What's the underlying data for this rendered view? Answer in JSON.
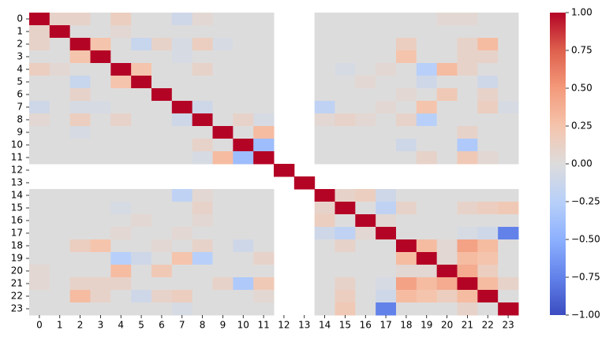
{
  "chart_data": {
    "type": "heatmap",
    "categories": [
      "0",
      "1",
      "2",
      "3",
      "4",
      "5",
      "6",
      "7",
      "8",
      "9",
      "10",
      "11",
      "12",
      "13",
      "14",
      "15",
      "16",
      "17",
      "18",
      "19",
      "20",
      "21",
      "22",
      "23"
    ],
    "values": [
      [
        1,
        0.1,
        0.1,
        0,
        0.15,
        0,
        0,
        -0.1,
        0.05,
        0,
        0,
        0,
        null,
        null,
        0,
        0,
        0,
        0,
        0,
        0,
        0.05,
        0.05,
        0,
        0
      ],
      [
        0.1,
        1,
        0,
        0,
        0.05,
        0,
        0,
        0,
        0,
        0,
        0,
        0,
        null,
        null,
        0,
        0,
        0,
        0,
        0,
        0,
        0,
        0,
        0,
        0
      ],
      [
        0.1,
        0,
        1,
        0.25,
        0,
        -0.15,
        0.1,
        -0.05,
        0.15,
        -0.05,
        0,
        0,
        null,
        null,
        0,
        0,
        0,
        0,
        0.15,
        0,
        0,
        0.1,
        0.3,
        0
      ],
      [
        0,
        0,
        0.25,
        1,
        0,
        0,
        0,
        -0.05,
        0,
        0,
        0,
        0,
        null,
        null,
        0,
        0,
        0,
        0,
        0.25,
        0,
        0,
        0.1,
        0.1,
        0
      ],
      [
        0.15,
        0.05,
        0,
        0,
        1,
        0.25,
        0,
        0,
        0.1,
        0,
        0,
        0,
        null,
        null,
        0,
        -0.05,
        0,
        0.05,
        0,
        -0.25,
        0.3,
        0.1,
        0,
        0
      ],
      [
        0,
        0,
        -0.15,
        0,
        0.25,
        1,
        0,
        0,
        0,
        0,
        0,
        0,
        null,
        null,
        0,
        0,
        0.05,
        0,
        0,
        -0.1,
        0,
        0,
        -0.1,
        0
      ],
      [
        0,
        0,
        0.1,
        0,
        0,
        0,
        1,
        0,
        0,
        0,
        0,
        0,
        null,
        null,
        0,
        0,
        0,
        0,
        0.05,
        0,
        0.2,
        0,
        0.1,
        0
      ],
      [
        -0.1,
        0,
        -0.05,
        -0.05,
        0,
        0,
        0,
        1,
        -0.1,
        0,
        0,
        0,
        null,
        null,
        -0.2,
        0,
        0,
        0.05,
        0,
        0.25,
        0,
        0,
        0.15,
        -0.05
      ],
      [
        0.05,
        0,
        0.15,
        0,
        0.1,
        0,
        0,
        -0.1,
        1,
        0,
        0.1,
        -0.05,
        null,
        null,
        0.05,
        0.1,
        0.05,
        0,
        0.1,
        -0.25,
        0,
        0,
        0,
        0
      ],
      [
        0,
        0,
        -0.05,
        0,
        0,
        0,
        0,
        0,
        0,
        1,
        0,
        0.3,
        null,
        null,
        0,
        0,
        0,
        0,
        0,
        0,
        0,
        0.1,
        0,
        0
      ],
      [
        0,
        0,
        0,
        0,
        0,
        0,
        0,
        0,
        0.1,
        0,
        1,
        -0.4,
        null,
        null,
        0,
        0,
        0,
        0,
        -0.1,
        0,
        0,
        -0.3,
        0,
        0
      ],
      [
        0,
        0,
        0,
        0,
        0,
        0,
        0,
        0,
        -0.05,
        0.3,
        -0.4,
        1,
        null,
        null,
        0,
        0,
        0,
        0,
        0,
        0.1,
        0,
        0.2,
        0.05,
        0
      ],
      [
        null,
        null,
        null,
        null,
        null,
        null,
        null,
        null,
        null,
        null,
        null,
        null,
        1,
        null,
        null,
        null,
        null,
        null,
        null,
        null,
        null,
        null,
        null,
        null
      ],
      [
        null,
        null,
        null,
        null,
        null,
        null,
        null,
        null,
        null,
        null,
        null,
        null,
        null,
        1,
        null,
        null,
        null,
        null,
        null,
        null,
        null,
        null,
        null,
        null
      ],
      [
        0,
        0,
        0,
        0,
        0,
        0,
        0,
        -0.2,
        0.05,
        0,
        0,
        0,
        null,
        null,
        1,
        0.1,
        0.15,
        -0.1,
        0,
        0,
        0,
        0,
        0,
        0
      ],
      [
        0,
        0,
        0,
        0,
        -0.05,
        0,
        0,
        0,
        0.1,
        0,
        0,
        0,
        null,
        null,
        0.1,
        1,
        0,
        -0.2,
        0.1,
        0,
        0,
        0.1,
        0.15,
        0.2
      ],
      [
        0,
        0,
        0,
        0,
        0,
        0.05,
        0,
        0,
        0.05,
        0,
        0,
        0,
        null,
        null,
        0.15,
        0,
        1,
        0.05,
        0,
        0,
        0,
        0,
        0,
        0
      ],
      [
        0,
        0,
        0,
        0,
        0.05,
        0,
        0,
        0.05,
        0,
        0,
        0,
        0,
        null,
        null,
        -0.1,
        -0.2,
        0.05,
        1,
        0,
        0,
        0,
        -0.05,
        -0.1,
        -0.75
      ],
      [
        0,
        0,
        0.15,
        0.25,
        0,
        0,
        0.05,
        0,
        0.1,
        0,
        -0.1,
        0,
        null,
        null,
        0,
        0.1,
        0,
        0,
        1,
        0.3,
        0.05,
        0.45,
        0.3,
        0
      ],
      [
        0,
        0,
        0,
        0,
        -0.25,
        -0.1,
        0,
        0.25,
        -0.25,
        0,
        0,
        0.1,
        null,
        null,
        0,
        0,
        0,
        0,
        0.3,
        1,
        0.05,
        0.3,
        0.25,
        0
      ],
      [
        0.05,
        0,
        0,
        0,
        0.3,
        0,
        0.2,
        0,
        0,
        0,
        0,
        0,
        null,
        null,
        0,
        0,
        0,
        0,
        0.05,
        0.05,
        1,
        0.4,
        0.15,
        0
      ],
      [
        0.05,
        0,
        0.1,
        0.1,
        0.1,
        0,
        0,
        0,
        0,
        0.1,
        -0.3,
        0.2,
        null,
        null,
        0,
        0.1,
        0,
        -0.05,
        0.45,
        0.3,
        0.4,
        1,
        0.3,
        0.1
      ],
      [
        0,
        0,
        0.3,
        0.1,
        0,
        -0.1,
        0.1,
        0.15,
        0,
        0,
        0,
        0.05,
        null,
        null,
        0,
        0.15,
        0,
        -0.1,
        0.3,
        0.25,
        0.15,
        0.3,
        1,
        0
      ],
      [
        0,
        0,
        0,
        0,
        0,
        0,
        0,
        -0.05,
        0,
        0,
        0,
        0,
        null,
        null,
        0,
        0.2,
        0,
        -0.75,
        0,
        0,
        0,
        0.1,
        0,
        1
      ]
    ],
    "clim": [
      -1,
      1
    ],
    "colors": [
      "#3b4cc0",
      "#6282ea",
      "#8db0fe",
      "#b8d0f9",
      "#dddcdc",
      "#f5c4ac",
      "#f49a7b",
      "#de604d",
      "#b40426"
    ],
    "cbar_ticks": [
      {
        "value": 1,
        "label": "1.00"
      },
      {
        "value": 0.75,
        "label": "0.75"
      },
      {
        "value": 0.5,
        "label": "0.50"
      },
      {
        "value": 0.25,
        "label": "0.25"
      },
      {
        "value": 0,
        "label": "0.00"
      },
      {
        "value": -0.25,
        "label": "−0.25"
      },
      {
        "value": -0.5,
        "label": "−0.50"
      },
      {
        "value": -0.75,
        "label": "−0.75"
      },
      {
        "value": -1,
        "label": "−1.00"
      }
    ]
  }
}
